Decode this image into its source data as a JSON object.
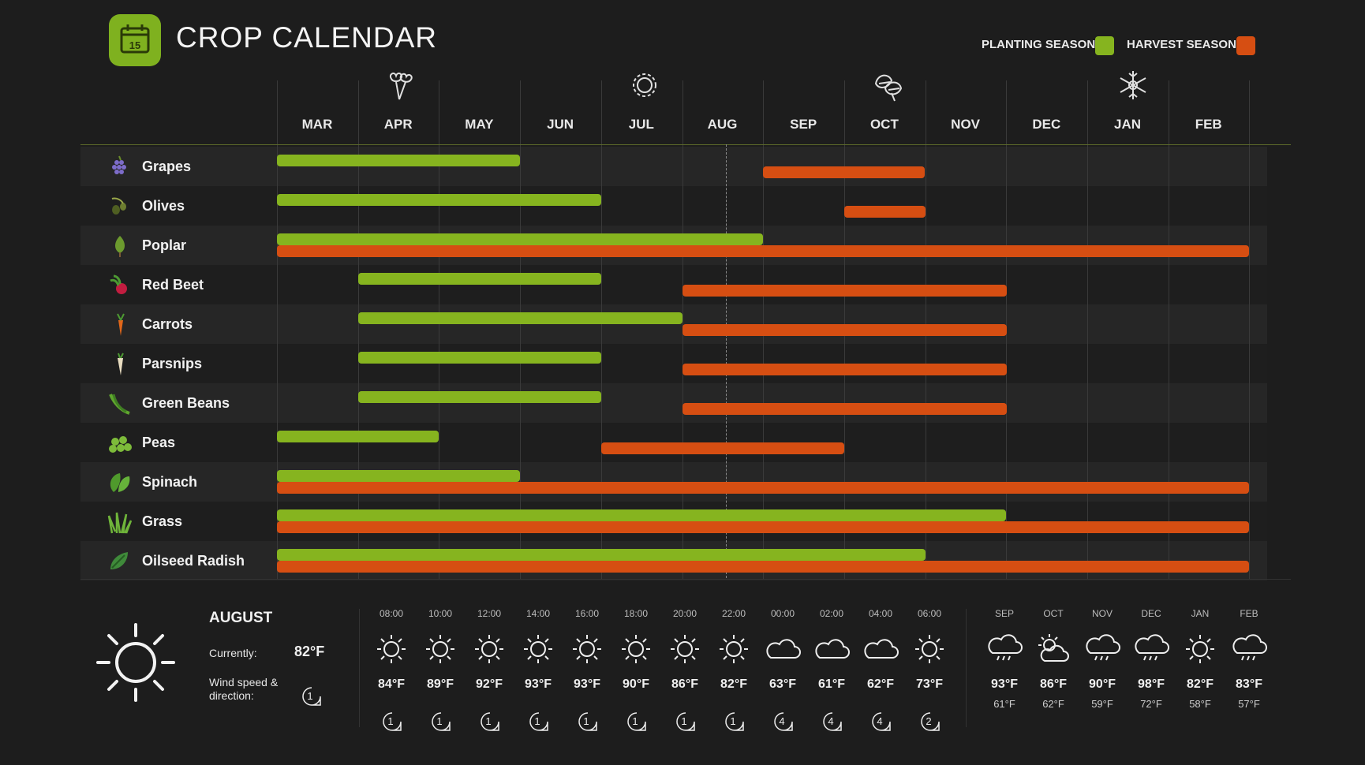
{
  "header": {
    "title": "CROP CALENDAR",
    "logo_day": "15",
    "legend": {
      "planting_label": "PLANTING SEASON",
      "harvest_label": "HARVEST SEASON",
      "planting_color": "#86b41f",
      "harvest_color": "#d64e12"
    }
  },
  "months": [
    "MAR",
    "APR",
    "MAY",
    "JUN",
    "JUL",
    "AUG",
    "SEP",
    "OCT",
    "NOV",
    "DEC",
    "JAN",
    "FEB"
  ],
  "seasons": [
    "flower-icon",
    "sun-icon",
    "leaves-icon",
    "snowflake-icon"
  ],
  "crops": [
    {
      "name": "Grapes",
      "icon": "grapes-icon",
      "planting": [
        "MAR",
        "MAY"
      ],
      "harvest": [
        "SEP",
        "OCT"
      ]
    },
    {
      "name": "Olives",
      "icon": "olives-icon",
      "planting": [
        "MAR",
        "JUN"
      ],
      "harvest": [
        "OCT",
        "OCT"
      ]
    },
    {
      "name": "Poplar",
      "icon": "poplar-icon",
      "planting": [
        "MAR",
        "AUG"
      ],
      "harvest": [
        "MAR",
        "FEB"
      ]
    },
    {
      "name": "Red Beet",
      "icon": "beet-icon",
      "planting": [
        "APR",
        "JUN"
      ],
      "harvest": [
        "AUG",
        "NOV"
      ]
    },
    {
      "name": "Carrots",
      "icon": "carrot-icon",
      "planting": [
        "APR",
        "JUL"
      ],
      "harvest": [
        "AUG",
        "NOV"
      ]
    },
    {
      "name": "Parsnips",
      "icon": "parsnip-icon",
      "planting": [
        "APR",
        "JUN"
      ],
      "harvest": [
        "AUG",
        "NOV"
      ]
    },
    {
      "name": "Green Beans",
      "icon": "green-beans-icon",
      "planting": [
        "APR",
        "JUN"
      ],
      "harvest": [
        "AUG",
        "NOV"
      ]
    },
    {
      "name": "Peas",
      "icon": "peas-icon",
      "planting": [
        "MAR",
        "APR"
      ],
      "harvest": [
        "JUL",
        "SEP"
      ]
    },
    {
      "name": "Spinach",
      "icon": "spinach-icon",
      "planting": [
        "MAR",
        "MAY"
      ],
      "harvest": [
        "MAR",
        "FEB"
      ]
    },
    {
      "name": "Grass",
      "icon": "grass-icon",
      "planting": [
        "MAR",
        "NOV"
      ],
      "harvest": [
        "MAR",
        "FEB"
      ]
    },
    {
      "name": "Oilseed Radish",
      "icon": "oilseed-radish-icon",
      "planting": [
        "MAR",
        "OCT"
      ],
      "harvest": [
        "MAR",
        "FEB"
      ]
    }
  ],
  "weather": {
    "month": "AUGUST",
    "currently_label": "Currently:",
    "currently_value": "82°F",
    "wind_label": "Wind speed & direction:",
    "wind_value": "1",
    "hourly": [
      {
        "time": "08:00",
        "icon": "sun",
        "temp": "84°F",
        "wind": "1"
      },
      {
        "time": "10:00",
        "icon": "sun",
        "temp": "89°F",
        "wind": "1"
      },
      {
        "time": "12:00",
        "icon": "sun",
        "temp": "92°F",
        "wind": "1"
      },
      {
        "time": "14:00",
        "icon": "sun",
        "temp": "93°F",
        "wind": "1"
      },
      {
        "time": "16:00",
        "icon": "sun",
        "temp": "93°F",
        "wind": "1"
      },
      {
        "time": "18:00",
        "icon": "sun",
        "temp": "90°F",
        "wind": "1"
      },
      {
        "time": "20:00",
        "icon": "sun",
        "temp": "86°F",
        "wind": "1"
      },
      {
        "time": "22:00",
        "icon": "sun",
        "temp": "82°F",
        "wind": "1"
      },
      {
        "time": "00:00",
        "icon": "cloud",
        "temp": "63°F",
        "wind": "4"
      },
      {
        "time": "02:00",
        "icon": "cloud",
        "temp": "61°F",
        "wind": "4"
      },
      {
        "time": "04:00",
        "icon": "cloud",
        "temp": "62°F",
        "wind": "4"
      },
      {
        "time": "06:00",
        "icon": "sun",
        "temp": "73°F",
        "wind": "2"
      }
    ],
    "monthly": [
      {
        "month": "SEP",
        "icon": "rain",
        "high": "93°F",
        "low": "61°F"
      },
      {
        "month": "OCT",
        "icon": "partly-cloudy",
        "high": "86°F",
        "low": "62°F"
      },
      {
        "month": "NOV",
        "icon": "rain",
        "high": "90°F",
        "low": "59°F"
      },
      {
        "month": "DEC",
        "icon": "rain",
        "high": "98°F",
        "low": "72°F"
      },
      {
        "month": "JAN",
        "icon": "sun",
        "high": "82°F",
        "low": "58°F"
      },
      {
        "month": "FEB",
        "icon": "rain",
        "high": "83°F",
        "low": "57°F"
      }
    ]
  }
}
